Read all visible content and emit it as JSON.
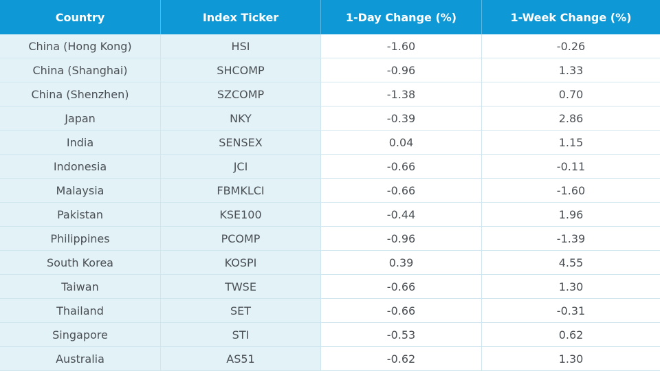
{
  "table": {
    "columns": [
      "Country",
      "Index Ticker",
      "1-Day Change (%)",
      "1-Week Change (%)"
    ],
    "rows": [
      [
        "China (Hong Kong)",
        "HSI",
        "-1.60",
        "-0.26"
      ],
      [
        "China (Shanghai)",
        "SHCOMP",
        "-0.96",
        "1.33"
      ],
      [
        "China (Shenzhen)",
        "SZCOMP",
        "-1.38",
        "0.70"
      ],
      [
        "Japan",
        "NKY",
        "-0.39",
        "2.86"
      ],
      [
        "India",
        "SENSEX",
        "0.04",
        "1.15"
      ],
      [
        "Indonesia",
        "JCI",
        "-0.66",
        "-0.11"
      ],
      [
        "Malaysia",
        "FBMKLCI",
        "-0.66",
        "-1.60"
      ],
      [
        "Pakistan",
        "KSE100",
        "-0.44",
        "1.96"
      ],
      [
        "Philippines",
        "PCOMP",
        "-0.96",
        "-1.39"
      ],
      [
        "South Korea",
        "KOSPI",
        "0.39",
        "4.55"
      ],
      [
        "Taiwan",
        "TWSE",
        "-0.66",
        "1.30"
      ],
      [
        "Thailand",
        "SET",
        "-0.66",
        "-0.31"
      ],
      [
        "Singapore",
        "STI",
        "-0.53",
        "0.62"
      ],
      [
        "Australia",
        "AS51",
        "-0.62",
        "1.30"
      ]
    ]
  },
  "colors": {
    "header_bg": "#0f98d6",
    "header_text": "#ffffff",
    "shaded_cell_bg": "#e2f2f7",
    "cell_text": "#4a4f54"
  }
}
